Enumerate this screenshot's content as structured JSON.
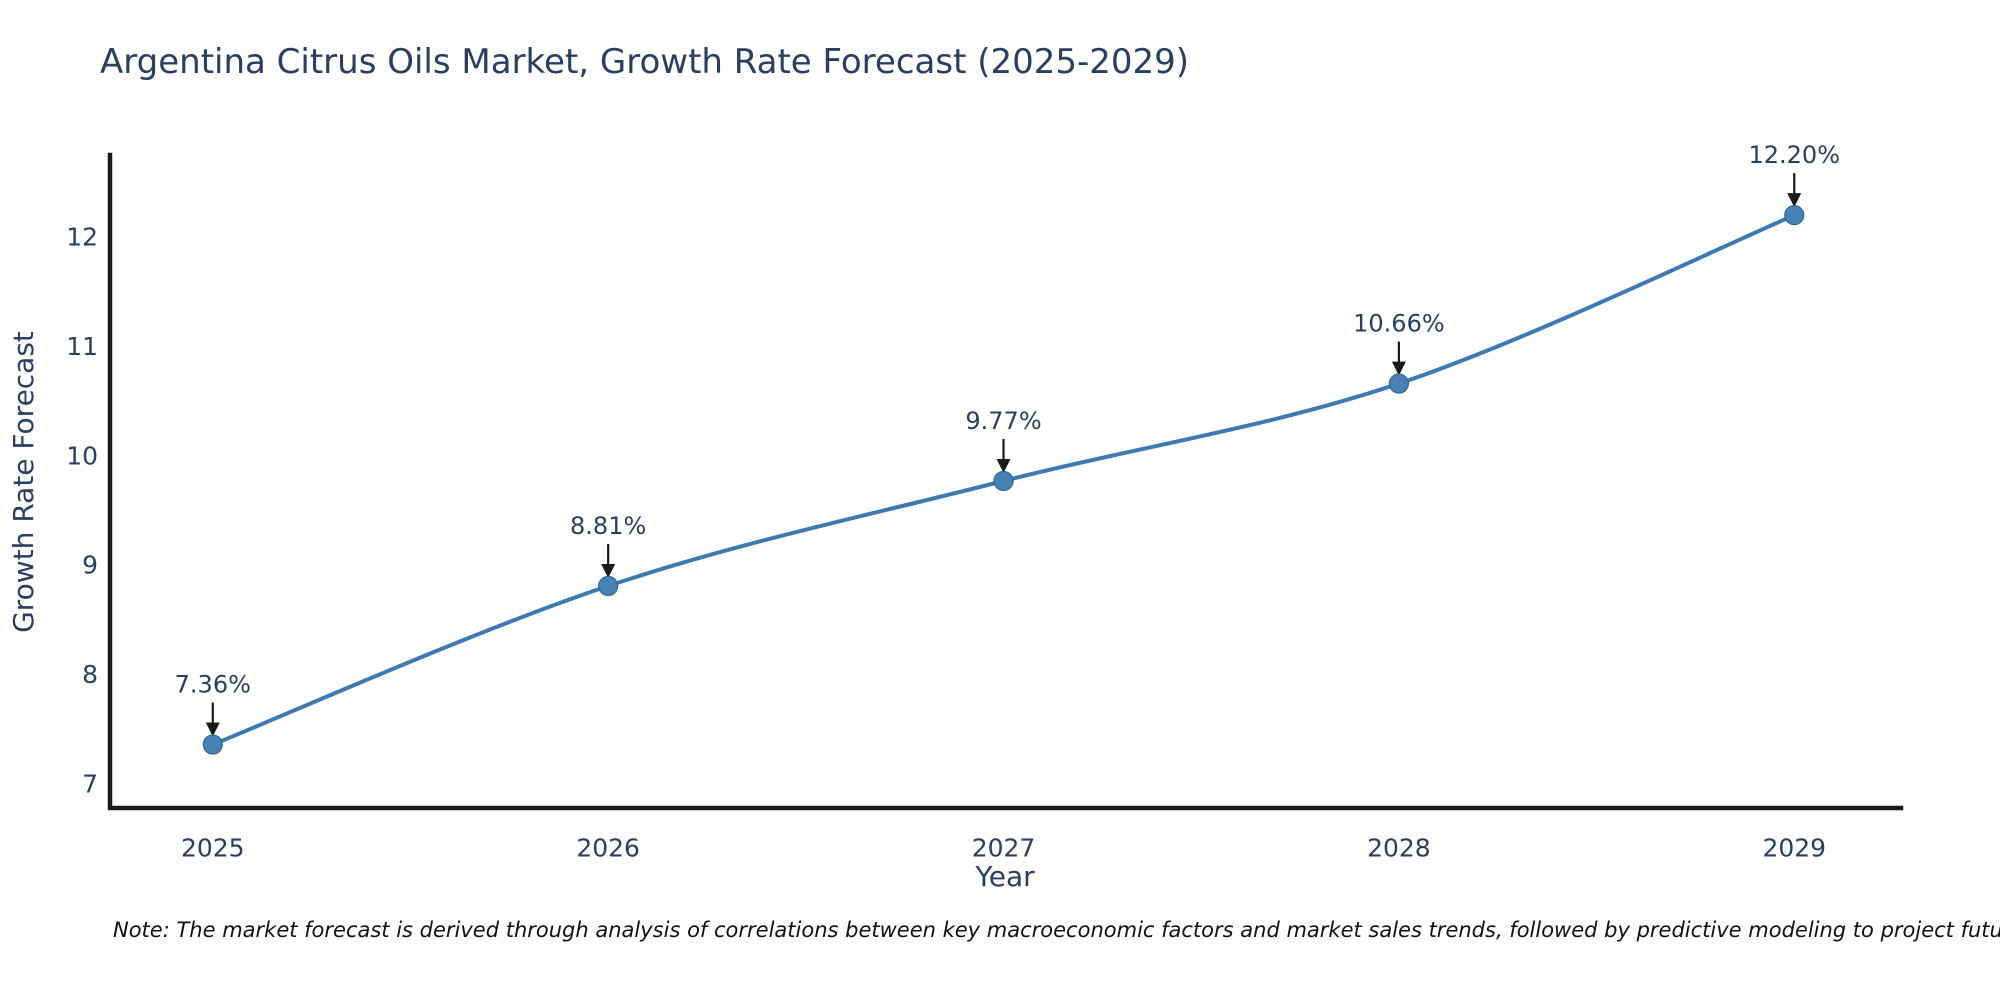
{
  "title": "Argentina Citrus Oils Market, Growth Rate Forecast (2025-2029)",
  "note": "Note: The market forecast is derived through analysis of correlations between key macroeconomic factors and market sales trends, followed by predictive modeling to project future sales",
  "chart_data": {
    "type": "line",
    "title": "Argentina Citrus Oils Market, Growth Rate Forecast (2025-2029)",
    "xlabel": "Year",
    "ylabel": "Growth Rate Forecast",
    "x": [
      2025,
      2026,
      2027,
      2028,
      2029
    ],
    "values": [
      7.36,
      8.81,
      9.77,
      10.66,
      12.2
    ],
    "point_labels": [
      "7.36%",
      "8.81%",
      "9.77%",
      "10.66%",
      "12.20%"
    ],
    "xticks": [
      "2025",
      "2026",
      "2027",
      "2028",
      "2029"
    ],
    "yticks": [
      7,
      8,
      9,
      10,
      11,
      12
    ],
    "xlim": [
      2024.74,
      2029.27
    ],
    "ylim": [
      6.78,
      12.75
    ],
    "grid": false,
    "legend_position": "none",
    "line_shape": "spline",
    "colors": {
      "line": "#3d79b3",
      "marker": "#4682b4",
      "marker_edge": "#2f6699",
      "axis": "#1a1a1a",
      "arrow": "#1a1a1a",
      "text": "#2a3f5f",
      "note_text": "#111111",
      "background": "#ffffff"
    }
  }
}
